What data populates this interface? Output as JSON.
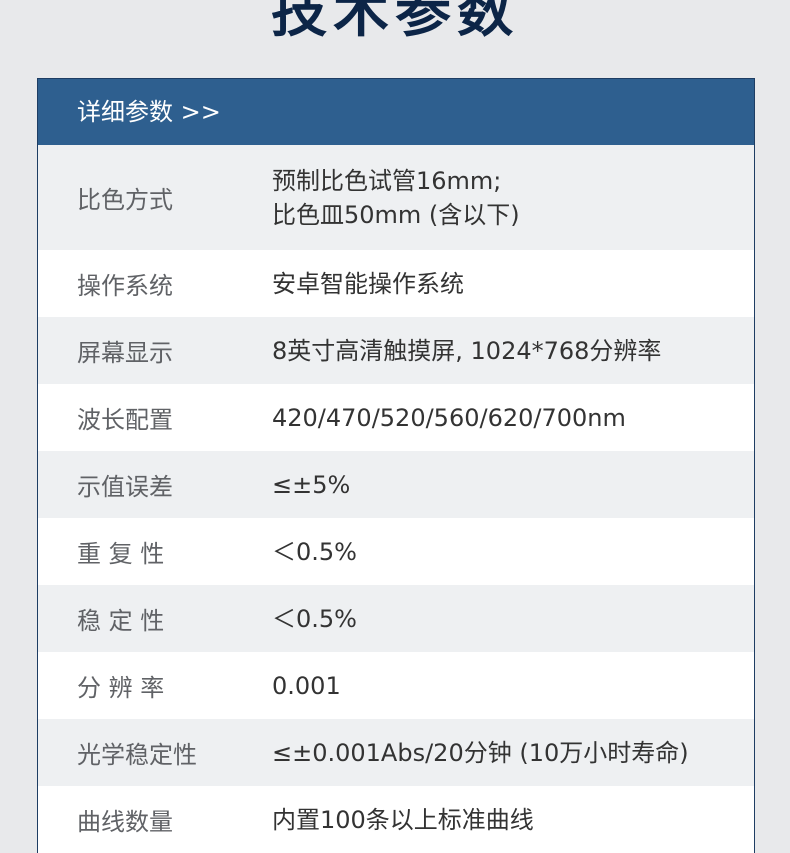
{
  "title": "技术参数",
  "table": {
    "header": "详细参数 >>",
    "rows": [
      {
        "label": "比色方式",
        "value": "预制比色试管16mm;\n比色皿50mm (含以下)"
      },
      {
        "label": "操作系统",
        "value": "安卓智能操作系统"
      },
      {
        "label": "屏幕显示",
        "value": "8英寸高清触摸屏, 1024*768分辨率"
      },
      {
        "label": "波长配置",
        "value": "420/470/520/560/620/700nm"
      },
      {
        "label": "示值误差",
        "value": "≤±5%"
      },
      {
        "label": "重 复 性",
        "value": "＜0.5%"
      },
      {
        "label": "稳 定 性",
        "value": "＜0.5%"
      },
      {
        "label": "分 辨 率",
        "value": "0.001"
      },
      {
        "label": "光学稳定性",
        "value": "≤±0.001Abs/20分钟 (10万小时寿命)"
      },
      {
        "label": "曲线数量",
        "value": "内置100条以上标准曲线"
      }
    ]
  }
}
